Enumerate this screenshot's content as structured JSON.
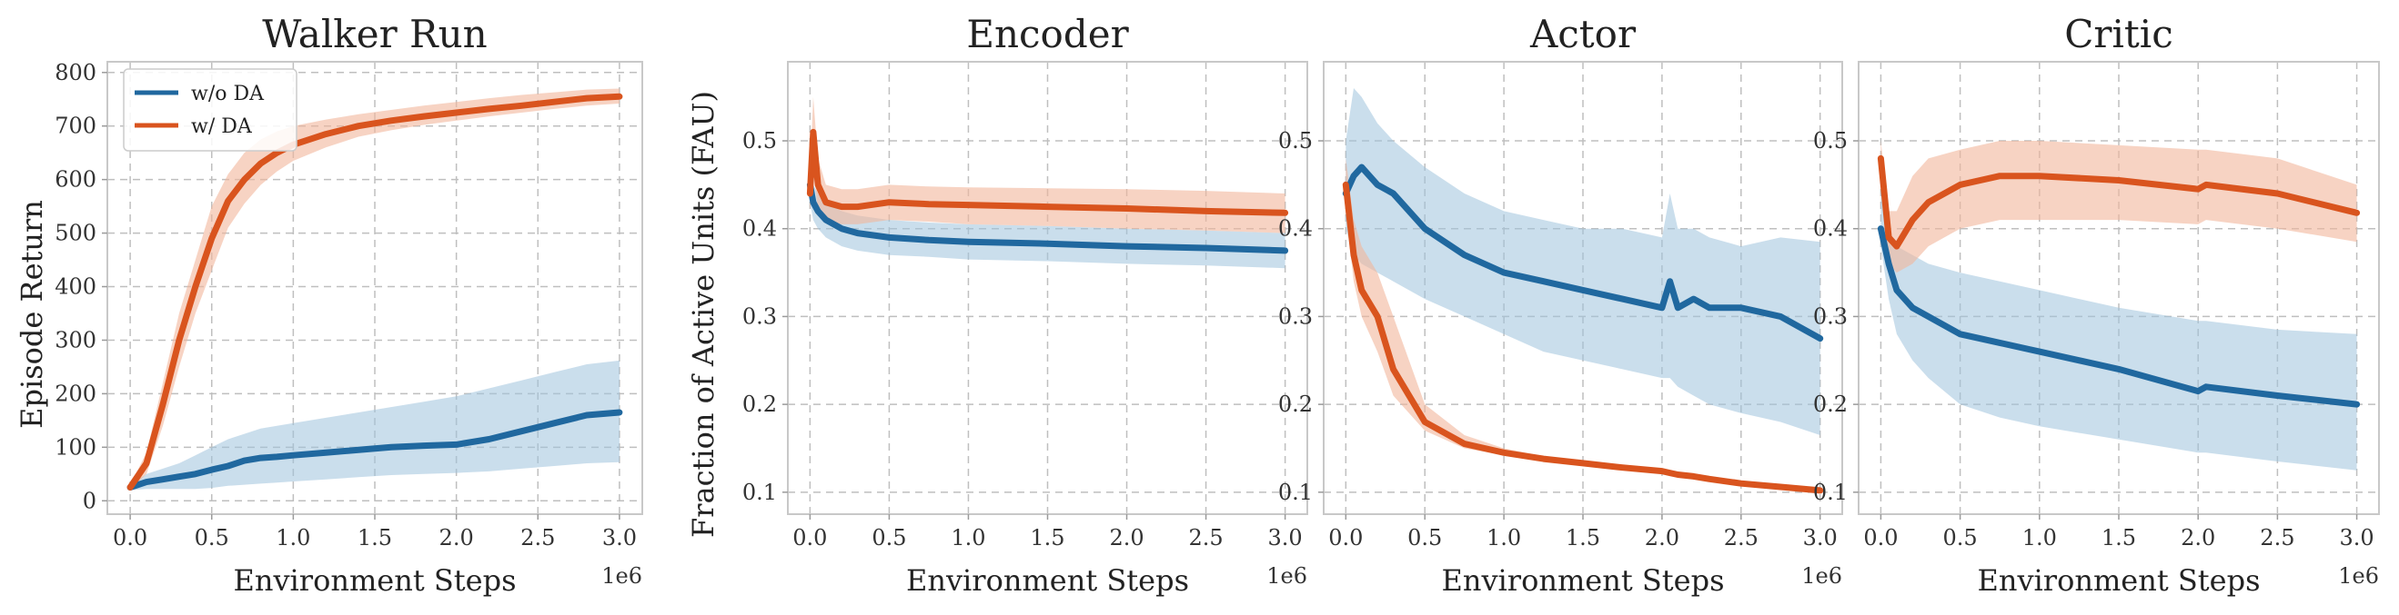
{
  "colors": {
    "without_da": "#20689f",
    "with_da": "#d9541e",
    "band_without_da": "#9ec2dc",
    "band_with_da": "#f2b69b"
  },
  "shared": {
    "xlabel": "Environment Steps",
    "x_exponent_label": "1e6",
    "ylabel_right": "Fraction of Active Units (FAU)"
  },
  "legend": [
    {
      "name": "w/o DA",
      "color": "#20689f"
    },
    {
      "name": "w/ DA",
      "color": "#d9541e"
    }
  ],
  "chart_data": [
    {
      "type": "line",
      "title": "Walker Run",
      "xlabel": "Environment Steps",
      "ylabel": "Episode Return",
      "xlim": [
        -0.14,
        3.14
      ],
      "ylim": [
        -25,
        820
      ],
      "xticks": [
        "0.0",
        "0.5",
        "1.0",
        "1.5",
        "2.0",
        "2.5",
        "3.0"
      ],
      "yticks": [
        "0",
        "100",
        "200",
        "300",
        "400",
        "500",
        "600",
        "700",
        "800"
      ],
      "x": [
        0.0,
        0.1,
        0.2,
        0.3,
        0.4,
        0.5,
        0.6,
        0.7,
        0.8,
        0.9,
        1.0,
        1.2,
        1.4,
        1.6,
        1.8,
        2.0,
        2.2,
        2.4,
        2.6,
        2.8,
        3.0
      ],
      "series": [
        {
          "name": "w/o DA",
          "color": "#20689f",
          "values": [
            25,
            35,
            40,
            45,
            50,
            58,
            65,
            75,
            80,
            82,
            85,
            90,
            95,
            100,
            103,
            105,
            115,
            130,
            145,
            160,
            165
          ],
          "lower": [
            20,
            22,
            22,
            22,
            22,
            24,
            28,
            30,
            32,
            34,
            36,
            40,
            44,
            48,
            50,
            52,
            55,
            60,
            65,
            70,
            72
          ],
          "upper": [
            30,
            50,
            60,
            70,
            85,
            100,
            115,
            125,
            135,
            140,
            145,
            155,
            165,
            175,
            185,
            195,
            210,
            225,
            240,
            255,
            262
          ]
        },
        {
          "name": "w/ DA",
          "color": "#d9541e",
          "values": [
            25,
            70,
            180,
            300,
            400,
            490,
            560,
            600,
            630,
            650,
            665,
            685,
            700,
            710,
            718,
            725,
            732,
            738,
            745,
            752,
            755
          ],
          "lower": [
            20,
            50,
            140,
            250,
            350,
            430,
            510,
            555,
            590,
            615,
            635,
            660,
            680,
            692,
            702,
            710,
            718,
            725,
            732,
            738,
            742
          ],
          "upper": [
            30,
            90,
            220,
            350,
            450,
            550,
            610,
            650,
            675,
            690,
            700,
            712,
            722,
            730,
            738,
            745,
            752,
            758,
            763,
            768,
            770
          ]
        }
      ]
    },
    {
      "type": "line",
      "title": "Encoder",
      "xlabel": "Environment Steps",
      "xlim": [
        -0.14,
        3.14
      ],
      "ylim": [
        0.075,
        0.59
      ],
      "xticks": [
        "0.0",
        "0.5",
        "1.0",
        "1.5",
        "2.0",
        "2.5",
        "3.0"
      ],
      "yticks": [
        "0.1",
        "0.2",
        "0.3",
        "0.4",
        "0.5"
      ],
      "x": [
        0.0,
        0.02,
        0.05,
        0.1,
        0.2,
        0.3,
        0.5,
        0.75,
        1.0,
        1.5,
        2.0,
        2.5,
        3.0
      ],
      "series": [
        {
          "name": "w/o DA",
          "color": "#20689f",
          "values": [
            0.45,
            0.43,
            0.42,
            0.41,
            0.4,
            0.395,
            0.39,
            0.387,
            0.385,
            0.383,
            0.38,
            0.378,
            0.375
          ],
          "lower": [
            0.43,
            0.41,
            0.4,
            0.39,
            0.38,
            0.375,
            0.37,
            0.368,
            0.365,
            0.363,
            0.36,
            0.358,
            0.355
          ],
          "upper": [
            0.47,
            0.45,
            0.44,
            0.43,
            0.42,
            0.415,
            0.41,
            0.407,
            0.405,
            0.403,
            0.4,
            0.398,
            0.395
          ]
        },
        {
          "name": "w/ DA",
          "color": "#d9541e",
          "values": [
            0.44,
            0.51,
            0.45,
            0.43,
            0.425,
            0.425,
            0.43,
            0.428,
            0.427,
            0.425,
            0.423,
            0.42,
            0.418
          ],
          "lower": [
            0.42,
            0.47,
            0.42,
            0.41,
            0.405,
            0.405,
            0.41,
            0.408,
            0.405,
            0.403,
            0.4,
            0.398,
            0.395
          ],
          "upper": [
            0.46,
            0.55,
            0.48,
            0.45,
            0.445,
            0.445,
            0.45,
            0.448,
            0.447,
            0.446,
            0.445,
            0.443,
            0.44
          ]
        }
      ]
    },
    {
      "type": "line",
      "title": "Actor",
      "xlabel": "Environment Steps",
      "xlim": [
        -0.14,
        3.14
      ],
      "ylim": [
        0.075,
        0.59
      ],
      "xticks": [
        "0.0",
        "0.5",
        "1.0",
        "1.5",
        "2.0",
        "2.5",
        "3.0"
      ],
      "yticks": [
        "0.1",
        "0.2",
        "0.3",
        "0.4",
        "0.5"
      ],
      "x": [
        0.0,
        0.05,
        0.1,
        0.2,
        0.3,
        0.5,
        0.75,
        1.0,
        1.25,
        1.5,
        1.75,
        2.0,
        2.05,
        2.1,
        2.2,
        2.3,
        2.5,
        2.75,
        3.0
      ],
      "series": [
        {
          "name": "w/o DA",
          "color": "#20689f",
          "values": [
            0.44,
            0.46,
            0.47,
            0.45,
            0.44,
            0.4,
            0.37,
            0.35,
            0.34,
            0.33,
            0.32,
            0.31,
            0.34,
            0.31,
            0.32,
            0.31,
            0.31,
            0.3,
            0.275
          ],
          "lower": [
            0.4,
            0.37,
            0.36,
            0.35,
            0.34,
            0.32,
            0.3,
            0.28,
            0.26,
            0.25,
            0.24,
            0.23,
            0.23,
            0.22,
            0.21,
            0.2,
            0.19,
            0.18,
            0.165
          ],
          "upper": [
            0.5,
            0.56,
            0.55,
            0.52,
            0.5,
            0.47,
            0.44,
            0.42,
            0.41,
            0.4,
            0.4,
            0.39,
            0.44,
            0.4,
            0.4,
            0.39,
            0.38,
            0.39,
            0.385
          ]
        },
        {
          "name": "w/ DA",
          "color": "#d9541e",
          "values": [
            0.45,
            0.37,
            0.33,
            0.3,
            0.24,
            0.18,
            0.155,
            0.145,
            0.138,
            0.133,
            0.128,
            0.124,
            0.122,
            0.12,
            0.118,
            0.115,
            0.11,
            0.106,
            0.102
          ],
          "lower": [
            0.42,
            0.34,
            0.3,
            0.26,
            0.21,
            0.17,
            0.15,
            0.142,
            0.135,
            0.131,
            0.126,
            0.122,
            0.12,
            0.118,
            0.116,
            0.113,
            0.108,
            0.104,
            0.1
          ],
          "upper": [
            0.48,
            0.41,
            0.38,
            0.35,
            0.3,
            0.2,
            0.165,
            0.15,
            0.141,
            0.136,
            0.131,
            0.127,
            0.125,
            0.123,
            0.121,
            0.118,
            0.113,
            0.109,
            0.105
          ]
        }
      ]
    },
    {
      "type": "line",
      "title": "Critic",
      "xlabel": "Environment Steps",
      "xlim": [
        -0.14,
        3.14
      ],
      "ylim": [
        0.075,
        0.59
      ],
      "xticks": [
        "0.0",
        "0.5",
        "1.0",
        "1.5",
        "2.0",
        "2.5",
        "3.0"
      ],
      "yticks": [
        "0.1",
        "0.2",
        "0.3",
        "0.4",
        "0.5"
      ],
      "x": [
        0.0,
        0.05,
        0.1,
        0.2,
        0.3,
        0.5,
        0.75,
        1.0,
        1.5,
        2.0,
        2.05,
        2.5,
        3.0
      ],
      "series": [
        {
          "name": "w/o DA",
          "color": "#20689f",
          "values": [
            0.4,
            0.36,
            0.33,
            0.31,
            0.3,
            0.28,
            0.27,
            0.26,
            0.24,
            0.215,
            0.22,
            0.21,
            0.2
          ],
          "lower": [
            0.38,
            0.32,
            0.28,
            0.25,
            0.23,
            0.2,
            0.185,
            0.175,
            0.16,
            0.145,
            0.145,
            0.135,
            0.125
          ],
          "upper": [
            0.44,
            0.4,
            0.38,
            0.37,
            0.36,
            0.35,
            0.34,
            0.33,
            0.31,
            0.295,
            0.295,
            0.285,
            0.28
          ]
        },
        {
          "name": "w/ DA",
          "color": "#d9541e",
          "values": [
            0.48,
            0.39,
            0.38,
            0.41,
            0.43,
            0.45,
            0.46,
            0.46,
            0.455,
            0.445,
            0.45,
            0.44,
            0.418
          ],
          "lower": [
            0.46,
            0.36,
            0.35,
            0.36,
            0.38,
            0.4,
            0.41,
            0.41,
            0.41,
            0.405,
            0.41,
            0.4,
            0.385
          ],
          "upper": [
            0.5,
            0.42,
            0.42,
            0.46,
            0.48,
            0.49,
            0.5,
            0.5,
            0.495,
            0.49,
            0.49,
            0.48,
            0.45
          ]
        }
      ]
    }
  ]
}
